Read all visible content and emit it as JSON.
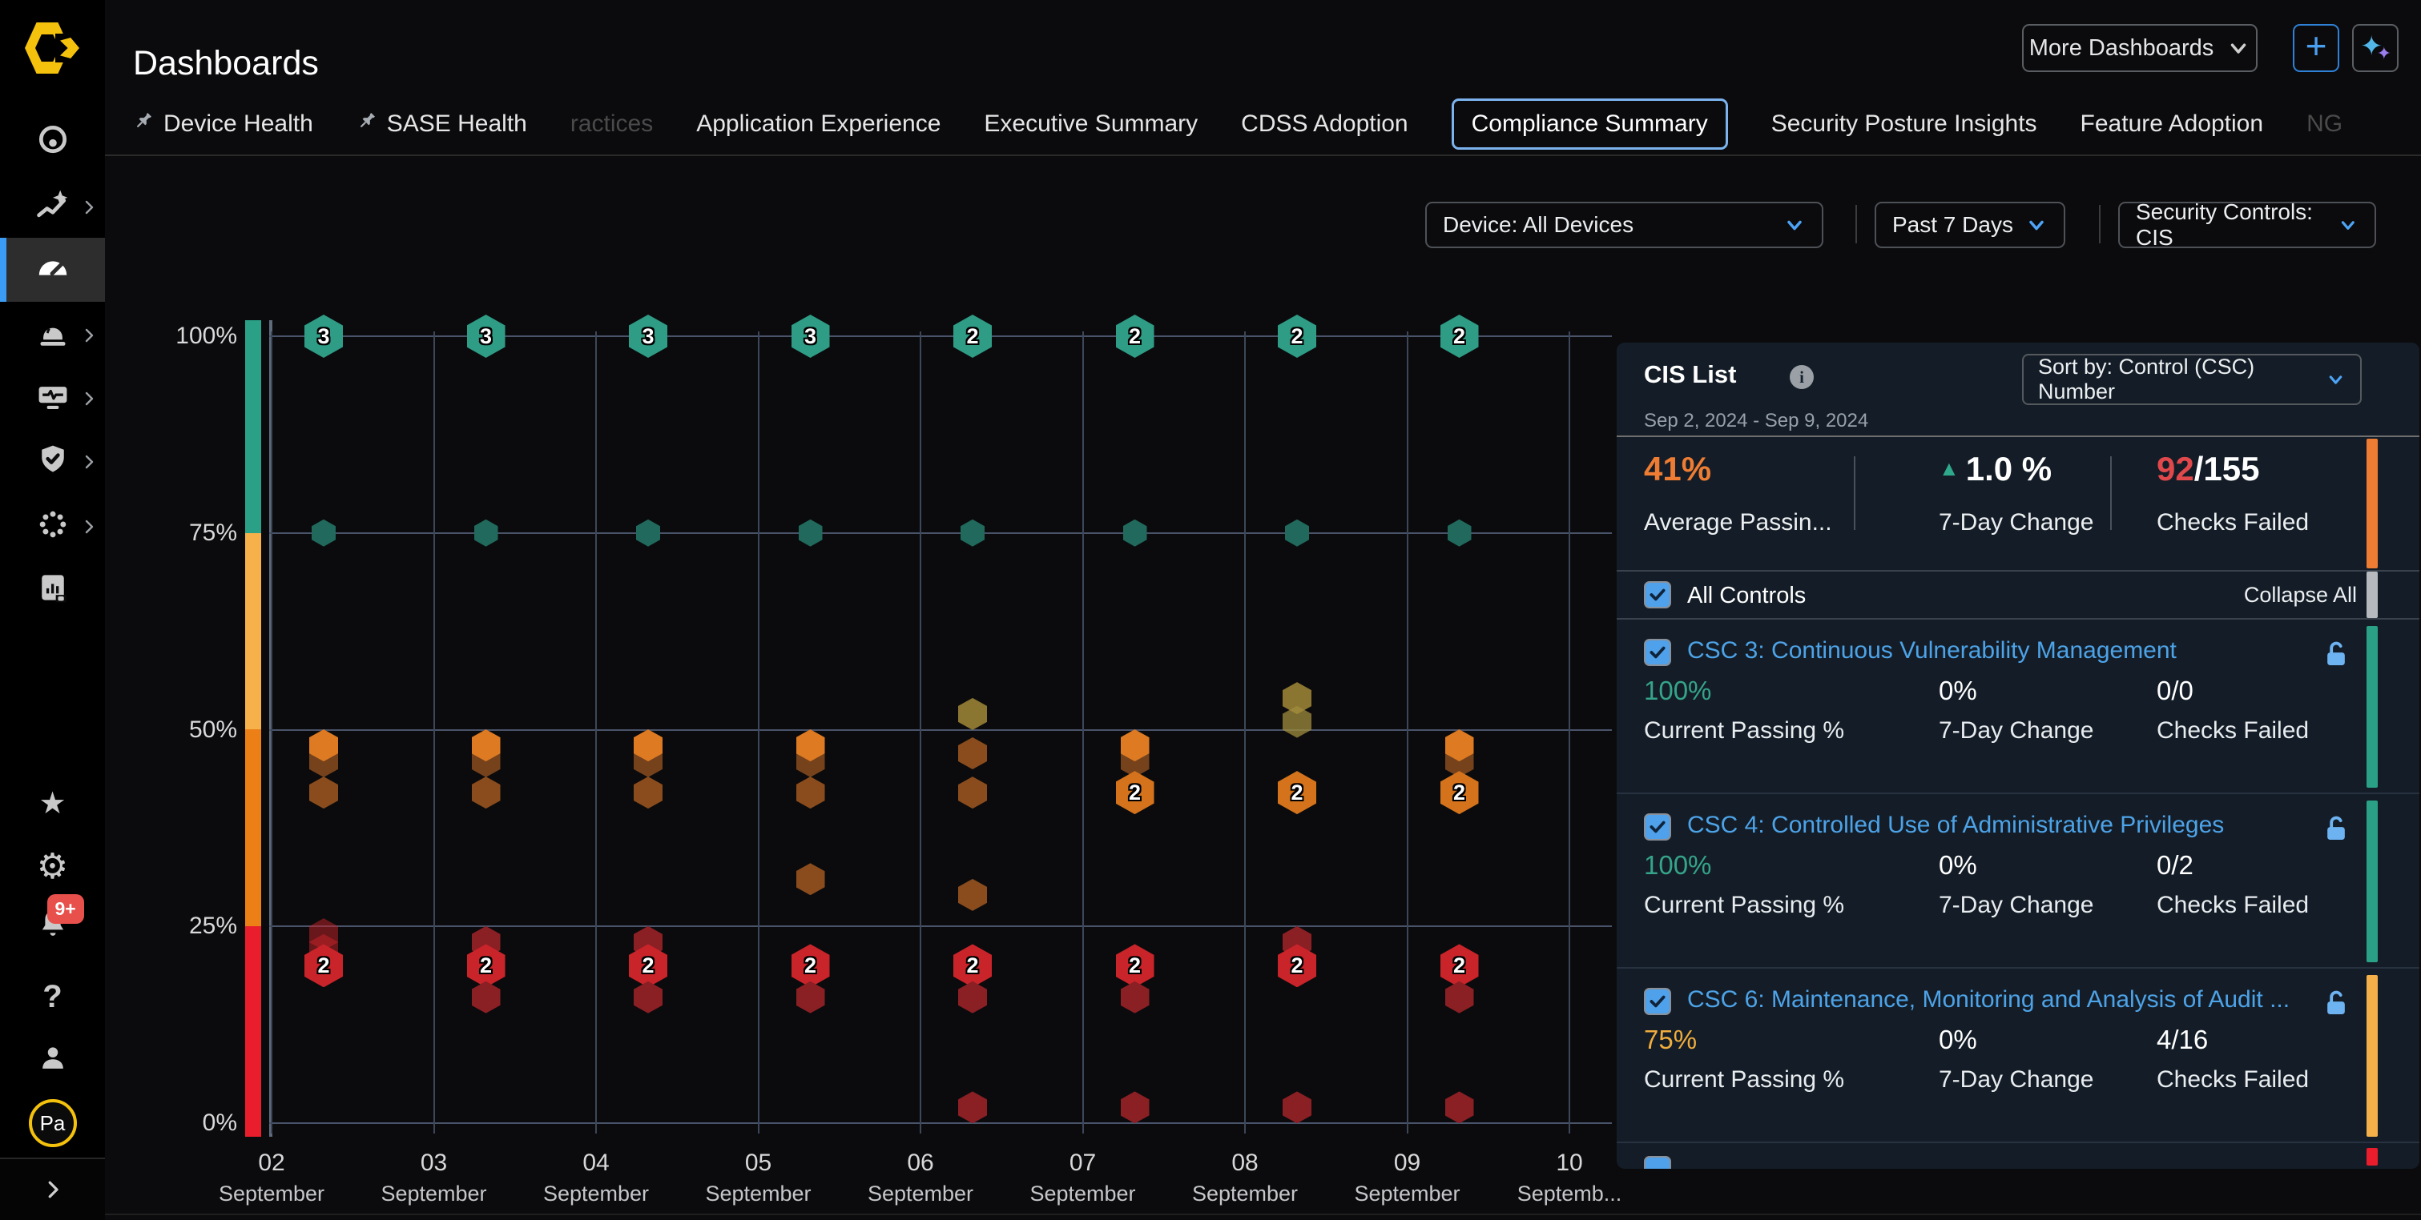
{
  "app": {
    "title": "Dashboards"
  },
  "header": {
    "more_dashboards_label": "More Dashboards",
    "add_label": "+",
    "tabs": [
      {
        "label": "Device Health",
        "pinned": true,
        "state": "normal"
      },
      {
        "label": "SASE Health",
        "pinned": true,
        "state": "normal"
      },
      {
        "label": "ractices",
        "pinned": false,
        "state": "dim"
      },
      {
        "label": "Application Experience",
        "pinned": false,
        "state": "normal"
      },
      {
        "label": "Executive Summary",
        "pinned": false,
        "state": "normal"
      },
      {
        "label": "CDSS Adoption",
        "pinned": false,
        "state": "normal"
      },
      {
        "label": "Compliance Summary",
        "pinned": false,
        "state": "selected"
      },
      {
        "label": "Security Posture Insights",
        "pinned": false,
        "state": "normal"
      },
      {
        "label": "Feature Adoption",
        "pinned": false,
        "state": "normal"
      },
      {
        "label": "NG",
        "pinned": false,
        "state": "dim"
      }
    ]
  },
  "filters": {
    "device": "Device: All Devices",
    "time": "Past 7 Days",
    "controls": "Security Controls: CIS"
  },
  "sidebar": {
    "top": [
      {
        "icon": "target-icon",
        "chevron": false,
        "active": false
      },
      {
        "icon": "trend-icon",
        "chevron": true,
        "active": false
      },
      {
        "icon": "speedometer-icon",
        "chevron": false,
        "active": true
      },
      {
        "icon": "alarm-icon",
        "chevron": true,
        "active": false
      },
      {
        "icon": "device-pulse-icon",
        "chevron": true,
        "active": false
      },
      {
        "icon": "shield-check-icon",
        "chevron": true,
        "active": false
      },
      {
        "icon": "dotted-circle-icon",
        "chevron": true,
        "active": false
      },
      {
        "icon": "report-icon",
        "chevron": false,
        "active": false
      }
    ],
    "bottom": [
      {
        "icon": "star-icon"
      },
      {
        "icon": "gear-icon"
      },
      {
        "icon": "bell-icon",
        "badge": "9+"
      },
      {
        "icon": "help-icon"
      },
      {
        "icon": "user-icon"
      },
      {
        "icon": "avatar",
        "text": "Pa"
      }
    ]
  },
  "chart_data": {
    "type": "scatter",
    "title": "",
    "xlabel": "",
    "ylabel": "",
    "ylim": [
      0,
      100
    ],
    "x_categories": [
      "02 September",
      "03 September",
      "04 September",
      "05 September",
      "06 September",
      "07 September",
      "08 September",
      "09 September",
      "10 Septemb..."
    ],
    "y_ticks": [
      "100%",
      "75%",
      "50%",
      "25%",
      "0%"
    ],
    "y_tick_values": [
      100,
      75,
      50,
      25,
      0
    ],
    "legend_colorbar": [
      "#2aa187",
      "#f6b14b",
      "#ec7f16",
      "#ea1d2c"
    ],
    "colors": {
      "teal": "#2f9c85",
      "tealSm": "#20695c",
      "olive": "#8a7531",
      "oliveDim": "rgba(160,140,62,0.75)",
      "orange": "#dd7a22",
      "orangeDeep": "#d4731c",
      "brown": "#8a4c1d",
      "brownDim": "#75421c",
      "red": "#c9242a",
      "redFade": "rgba(201,36,42,0.5)",
      "redDark": "#8a1f24"
    },
    "points": [
      {
        "x": 0,
        "y": 100,
        "label": "3",
        "c": "teal",
        "s": "lg"
      },
      {
        "x": 0,
        "y": 75,
        "label": "",
        "c": "tealSm",
        "s": "sm"
      },
      {
        "x": 0,
        "y": 46,
        "label": "",
        "c": "brownDim",
        "s": "md"
      },
      {
        "x": 0,
        "y": 48,
        "label": "",
        "c": "orange",
        "s": "md"
      },
      {
        "x": 0,
        "y": 42,
        "label": "",
        "c": "brown",
        "s": "md"
      },
      {
        "x": 0,
        "y": 24,
        "label": "",
        "c": "redFade",
        "s": "md"
      },
      {
        "x": 0,
        "y": 22,
        "label": "",
        "c": "redFade",
        "s": "md"
      },
      {
        "x": 0,
        "y": 20,
        "label": "2",
        "c": "red",
        "s": "lg"
      },
      {
        "x": 1,
        "y": 100,
        "label": "3",
        "c": "teal",
        "s": "lg"
      },
      {
        "x": 1,
        "y": 75,
        "label": "",
        "c": "tealSm",
        "s": "sm"
      },
      {
        "x": 1,
        "y": 46,
        "label": "",
        "c": "brownDim",
        "s": "md"
      },
      {
        "x": 1,
        "y": 48,
        "label": "",
        "c": "orange",
        "s": "md"
      },
      {
        "x": 1,
        "y": 42,
        "label": "",
        "c": "brown",
        "s": "md"
      },
      {
        "x": 1,
        "y": 23,
        "label": "",
        "c": "redDark",
        "s": "md"
      },
      {
        "x": 1,
        "y": 20,
        "label": "2",
        "c": "red",
        "s": "lg"
      },
      {
        "x": 1,
        "y": 16,
        "label": "",
        "c": "redDark",
        "s": "md"
      },
      {
        "x": 2,
        "y": 100,
        "label": "3",
        "c": "teal",
        "s": "lg"
      },
      {
        "x": 2,
        "y": 75,
        "label": "",
        "c": "tealSm",
        "s": "sm"
      },
      {
        "x": 2,
        "y": 46,
        "label": "",
        "c": "brownDim",
        "s": "md"
      },
      {
        "x": 2,
        "y": 48,
        "label": "",
        "c": "orange",
        "s": "md"
      },
      {
        "x": 2,
        "y": 42,
        "label": "",
        "c": "brown",
        "s": "md"
      },
      {
        "x": 2,
        "y": 23,
        "label": "",
        "c": "redDark",
        "s": "md"
      },
      {
        "x": 2,
        "y": 20,
        "label": "2",
        "c": "red",
        "s": "lg"
      },
      {
        "x": 2,
        "y": 16,
        "label": "",
        "c": "redDark",
        "s": "md"
      },
      {
        "x": 3,
        "y": 100,
        "label": "3",
        "c": "teal",
        "s": "lg"
      },
      {
        "x": 3,
        "y": 75,
        "label": "",
        "c": "tealSm",
        "s": "sm"
      },
      {
        "x": 3,
        "y": 46,
        "label": "",
        "c": "brownDim",
        "s": "md"
      },
      {
        "x": 3,
        "y": 48,
        "label": "",
        "c": "orange",
        "s": "md"
      },
      {
        "x": 3,
        "y": 42,
        "label": "",
        "c": "brown",
        "s": "md"
      },
      {
        "x": 3,
        "y": 31,
        "label": "",
        "c": "brown",
        "s": "md"
      },
      {
        "x": 3,
        "y": 20,
        "label": "2",
        "c": "red",
        "s": "lg"
      },
      {
        "x": 3,
        "y": 16,
        "label": "",
        "c": "redDark",
        "s": "md"
      },
      {
        "x": 4,
        "y": 100,
        "label": "2",
        "c": "teal",
        "s": "lg"
      },
      {
        "x": 4,
        "y": 75,
        "label": "",
        "c": "tealSm",
        "s": "sm"
      },
      {
        "x": 4,
        "y": 52,
        "label": "",
        "c": "olive",
        "s": "md"
      },
      {
        "x": 4,
        "y": 47,
        "label": "",
        "c": "brown",
        "s": "md"
      },
      {
        "x": 4,
        "y": 42,
        "label": "",
        "c": "brown",
        "s": "md"
      },
      {
        "x": 4,
        "y": 29,
        "label": "",
        "c": "brown",
        "s": "md"
      },
      {
        "x": 4,
        "y": 20,
        "label": "2",
        "c": "red",
        "s": "lg"
      },
      {
        "x": 4,
        "y": 16,
        "label": "",
        "c": "redDark",
        "s": "md"
      },
      {
        "x": 4,
        "y": 2,
        "label": "",
        "c": "redDark",
        "s": "md"
      },
      {
        "x": 5,
        "y": 100,
        "label": "2",
        "c": "teal",
        "s": "lg"
      },
      {
        "x": 5,
        "y": 75,
        "label": "",
        "c": "tealSm",
        "s": "sm"
      },
      {
        "x": 5,
        "y": 46,
        "label": "",
        "c": "brownDim",
        "s": "md"
      },
      {
        "x": 5,
        "y": 48,
        "label": "",
        "c": "orange",
        "s": "md"
      },
      {
        "x": 5,
        "y": 42,
        "label": "2",
        "c": "orangeDeep",
        "s": "lg"
      },
      {
        "x": 5,
        "y": 20,
        "label": "2",
        "c": "red",
        "s": "lg"
      },
      {
        "x": 5,
        "y": 16,
        "label": "",
        "c": "redDark",
        "s": "md"
      },
      {
        "x": 5,
        "y": 2,
        "label": "",
        "c": "redDark",
        "s": "md"
      },
      {
        "x": 6,
        "y": 100,
        "label": "2",
        "c": "teal",
        "s": "lg"
      },
      {
        "x": 6,
        "y": 75,
        "label": "",
        "c": "tealSm",
        "s": "sm"
      },
      {
        "x": 6,
        "y": 54,
        "label": "",
        "c": "olive",
        "s": "md"
      },
      {
        "x": 6,
        "y": 51,
        "label": "",
        "c": "oliveDim",
        "s": "md"
      },
      {
        "x": 6,
        "y": 42,
        "label": "2",
        "c": "orangeDeep",
        "s": "lg"
      },
      {
        "x": 6,
        "y": 23,
        "label": "",
        "c": "redDark",
        "s": "md"
      },
      {
        "x": 6,
        "y": 20,
        "label": "2",
        "c": "red",
        "s": "lg"
      },
      {
        "x": 6,
        "y": 2,
        "label": "",
        "c": "redDark",
        "s": "md"
      },
      {
        "x": 7,
        "y": 100,
        "label": "2",
        "c": "teal",
        "s": "lg"
      },
      {
        "x": 7,
        "y": 75,
        "label": "",
        "c": "tealSm",
        "s": "sm"
      },
      {
        "x": 7,
        "y": 46,
        "label": "",
        "c": "brownDim",
        "s": "md"
      },
      {
        "x": 7,
        "y": 48,
        "label": "",
        "c": "orange",
        "s": "md"
      },
      {
        "x": 7,
        "y": 42,
        "label": "2",
        "c": "orangeDeep",
        "s": "lg"
      },
      {
        "x": 7,
        "y": 20,
        "label": "2",
        "c": "red",
        "s": "lg"
      },
      {
        "x": 7,
        "y": 16,
        "label": "",
        "c": "redDark",
        "s": "md"
      },
      {
        "x": 7,
        "y": 2,
        "label": "",
        "c": "redDark",
        "s": "md"
      }
    ]
  },
  "panel": {
    "title": "CIS List",
    "sort_label": "Sort by: Control (CSC) Number",
    "date_range": "Sep 2, 2024 - Sep 9, 2024",
    "stats_accent": "#ee7d33",
    "stats": [
      {
        "value": "41%",
        "label": "Average Passin...",
        "color": "#ee7d33"
      },
      {
        "value": "1.0 %",
        "label": "7-Day Change",
        "arrow_glyph": "▲",
        "arrow_color": "#2fa98c"
      },
      {
        "value": "92",
        "value2": "/155",
        "label": "Checks Failed",
        "color": "#e0484b"
      }
    ],
    "all_controls_label": "All Controls",
    "collapse_all_label": "Collapse All",
    "row_labels": {
      "passing": "Current Passing %",
      "change": "7-Day Change",
      "failed": "Checks Failed"
    },
    "rows": [
      {
        "title": "CSC 3: Continuous Vulnerability Management",
        "passing": "100%",
        "passing_color": "#35a489",
        "change": "0%",
        "failed": "0/0",
        "accent": "#2aa187",
        "checked": true
      },
      {
        "title": "CSC 4: Controlled Use of Administrative Privileges",
        "passing": "100%",
        "passing_color": "#35a489",
        "change": "0%",
        "failed": "0/2",
        "accent": "#2aa187",
        "checked": true
      },
      {
        "title": "CSC 6: Maintenance, Monitoring and Analysis of Audit ...",
        "passing": "75%",
        "passing_color": "#f0ad3e",
        "change": "0%",
        "failed": "4/16",
        "accent": "#f5b04a",
        "checked": true
      }
    ],
    "partial_row_accent": "#ea1d2c",
    "scroll_thumb_color": "#b6babe"
  }
}
